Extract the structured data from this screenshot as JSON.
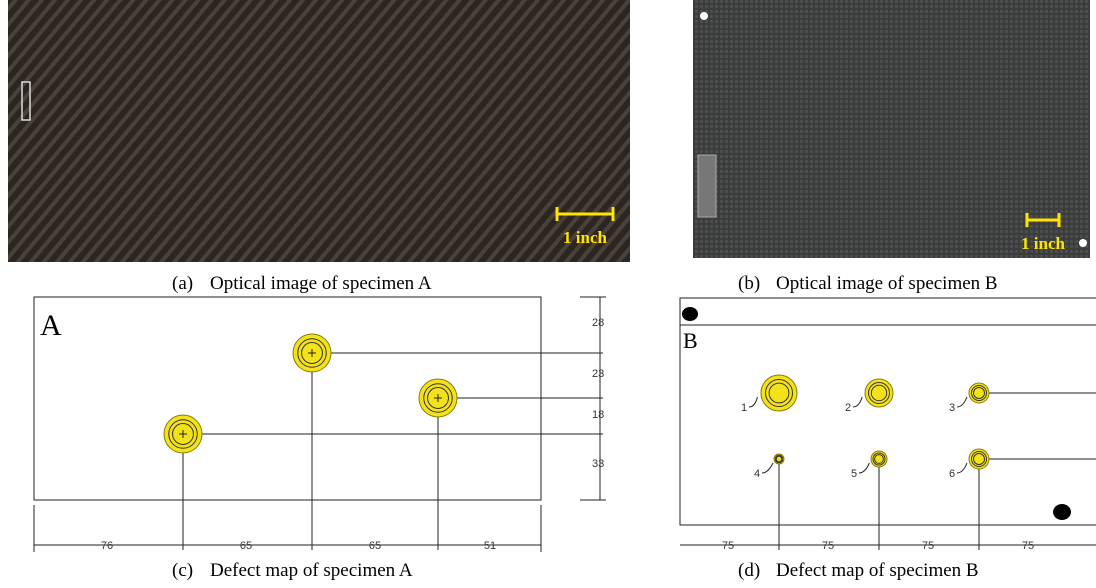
{
  "panels": [
    {
      "label": "(a)",
      "caption": "Optical image of specimen A",
      "scale_label": "1 inch"
    },
    {
      "label": "(b)",
      "caption": "Optical image of specimen B",
      "scale_label": "1 inch"
    },
    {
      "label": "(c)",
      "caption": "Defect map of specimen A"
    },
    {
      "label": "(d)",
      "caption": "Defect map of specimen B"
    }
  ],
  "maps": [
    {
      "letter": "A",
      "right_dims": [
        "28",
        "23",
        "18",
        "33"
      ],
      "bottom_dims": [
        "76",
        "65",
        "65",
        "51"
      ]
    },
    {
      "letter": "B",
      "defects": [
        "1",
        "2",
        "3",
        "4",
        "5",
        "6"
      ],
      "bottom_dims": [
        "75",
        "75",
        "75",
        "75"
      ]
    }
  ]
}
